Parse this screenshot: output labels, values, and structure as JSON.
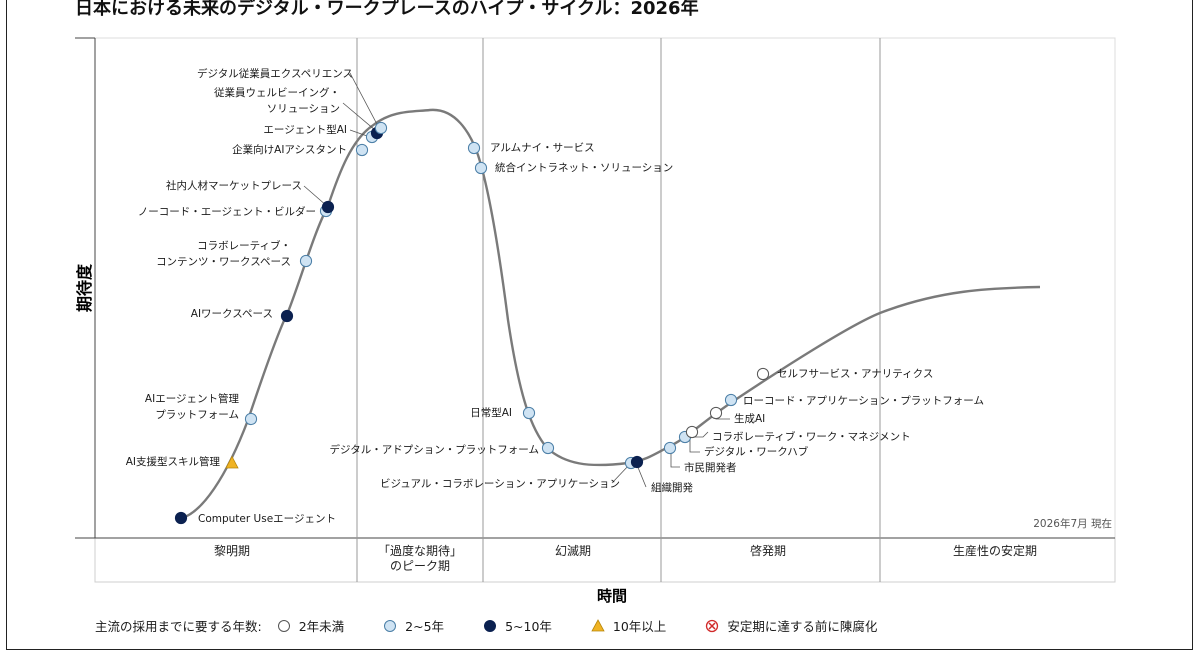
{
  "title": "日本における未来のデジタル・ワークプレースのハイプ・サイクル：2026年",
  "axes": {
    "y_label": "期待度",
    "x_label": "時間"
  },
  "as_of": "2026年7月 現在",
  "phases": [
    {
      "label": "黎明期"
    },
    {
      "label": "「過度な期待」",
      "label2": "のピーク期"
    },
    {
      "label": "幻滅期"
    },
    {
      "label": "啓発期"
    },
    {
      "label": "生産性の安定期"
    }
  ],
  "technologies": [
    {
      "name": "Computer Useエージェント",
      "category": "5~10年"
    },
    {
      "name": "AI支援型スキル管理",
      "category": "10年以上"
    },
    {
      "name": "AIエージェント管理",
      "name2": "プラットフォーム",
      "category": "2~5年"
    },
    {
      "name": "AIワークスペース",
      "category": "5~10年"
    },
    {
      "name": "コラボレーティブ・",
      "name2": "コンテンツ・ワークスペース",
      "category": "2~5年"
    },
    {
      "name": "ノーコード・エージェント・ビルダー",
      "category": "2~5年"
    },
    {
      "name": "社内人材マーケットプレース",
      "category": "5~10年"
    },
    {
      "name": "企業向けAIアシスタント",
      "category": "2~5年"
    },
    {
      "name": "エージェント型AI",
      "category": "2~5年"
    },
    {
      "name": "従業員ウェルビーイング・",
      "name2": "ソリューション",
      "category": "5~10年"
    },
    {
      "name": "デジタル従業員エクスペリエンス",
      "category": "2~5年"
    },
    {
      "name": "アルムナイ・サービス",
      "category": "2~5年"
    },
    {
      "name": "統合イントラネット・ソリューション",
      "category": "2~5年"
    },
    {
      "name": "日常型AI",
      "category": "2~5年"
    },
    {
      "name": "デジタル・アドプション・プラットフォーム",
      "category": "2~5年"
    },
    {
      "name": "ビジュアル・コラボレーション・アプリケーション",
      "category": "2~5年"
    },
    {
      "name": "組織開発",
      "category": "5~10年"
    },
    {
      "name": "市民開発者",
      "category": "2~5年"
    },
    {
      "name": "デジタル・ワークハブ",
      "category": "2~5年"
    },
    {
      "name": "コラボレーティブ・ワーク・マネジメント",
      "category": "2年未満"
    },
    {
      "name": "生成AI",
      "category": "2年未満"
    },
    {
      "name": "ローコード・アプリケーション・プラットフォーム",
      "category": "2~5年"
    },
    {
      "name": "セルフサービス・アナリティクス",
      "category": "2年未満"
    }
  ],
  "legend": {
    "title": "主流の採用までに要する年数:",
    "items": [
      {
        "label": "2年未満",
        "marker": "circle-white"
      },
      {
        "label": "2~5年",
        "marker": "circle-light-blue"
      },
      {
        "label": "5~10年",
        "marker": "circle-navy"
      },
      {
        "label": "10年以上",
        "marker": "triangle-gold"
      },
      {
        "label": "安定期に達する前に陳腐化",
        "marker": "circle-x-red"
      }
    ]
  },
  "colors": {
    "curve": "#7a7a7a",
    "under_2": "#ffffff",
    "years_2_5": "#cfe3f3",
    "years_5_10": "#0b2150",
    "over_10": "#f0b323",
    "obsolete": "#d12a2a",
    "marker_stroke": "#4a7ea6",
    "divider": "#9a9a9a"
  }
}
